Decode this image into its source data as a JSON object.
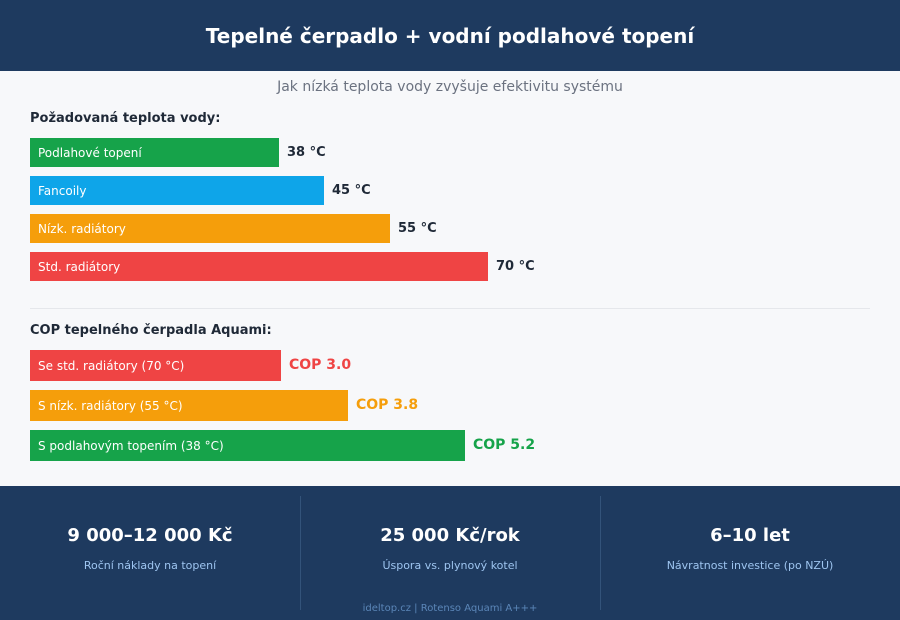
{
  "header": {
    "title": "Tepelné čerpadlo + vodní podlahové topení"
  },
  "subtitle": "Jak nízká teplota vody zvyšuje efektivitu systému",
  "colors": {
    "green": "#16a34a",
    "blue": "#0ea5e9",
    "orange": "#f59e0b",
    "red": "#ef4444",
    "navy": "#1e3a5f"
  },
  "chart_data": [
    {
      "type": "bar",
      "orientation": "horizontal",
      "title": "Požadovaná teplota vody:",
      "categories": [
        "Podlahové topení",
        "Fancoily",
        "Nízk. radiátory",
        "Std. radiátory"
      ],
      "values": [
        38,
        45,
        55,
        70
      ],
      "value_labels": [
        "38 °C",
        "45 °C",
        "55 °C",
        "70 °C"
      ],
      "colors": [
        "#16a34a",
        "#0ea5e9",
        "#f59e0b",
        "#ef4444"
      ],
      "xlim": [
        0,
        100
      ]
    },
    {
      "type": "bar",
      "orientation": "horizontal",
      "title": "COP tepelného čerpadla Aquami:",
      "categories": [
        "Se std. radiátory (70 °C)",
        "S nízk. radiátory (55 °C)",
        "S podlahovým topením (38 °C)"
      ],
      "values": [
        3.0,
        3.8,
        5.2
      ],
      "value_labels": [
        "COP 3.0",
        "COP 3.8",
        "COP 5.2"
      ],
      "colors": [
        "#ef4444",
        "#f59e0b",
        "#16a34a"
      ],
      "xlim": [
        0,
        10
      ]
    }
  ],
  "footer": {
    "stats": [
      {
        "value": "9 000–12 000 Kč",
        "label": "Roční náklady na topení"
      },
      {
        "value": "25 000 Kč/rok",
        "label": "Úspora vs. plynový kotel"
      },
      {
        "value": "6–10 let",
        "label": "Návratnost investice (po NZÚ)"
      }
    ],
    "credit": "ideltop.cz | Rotenso Aquami A+++"
  }
}
